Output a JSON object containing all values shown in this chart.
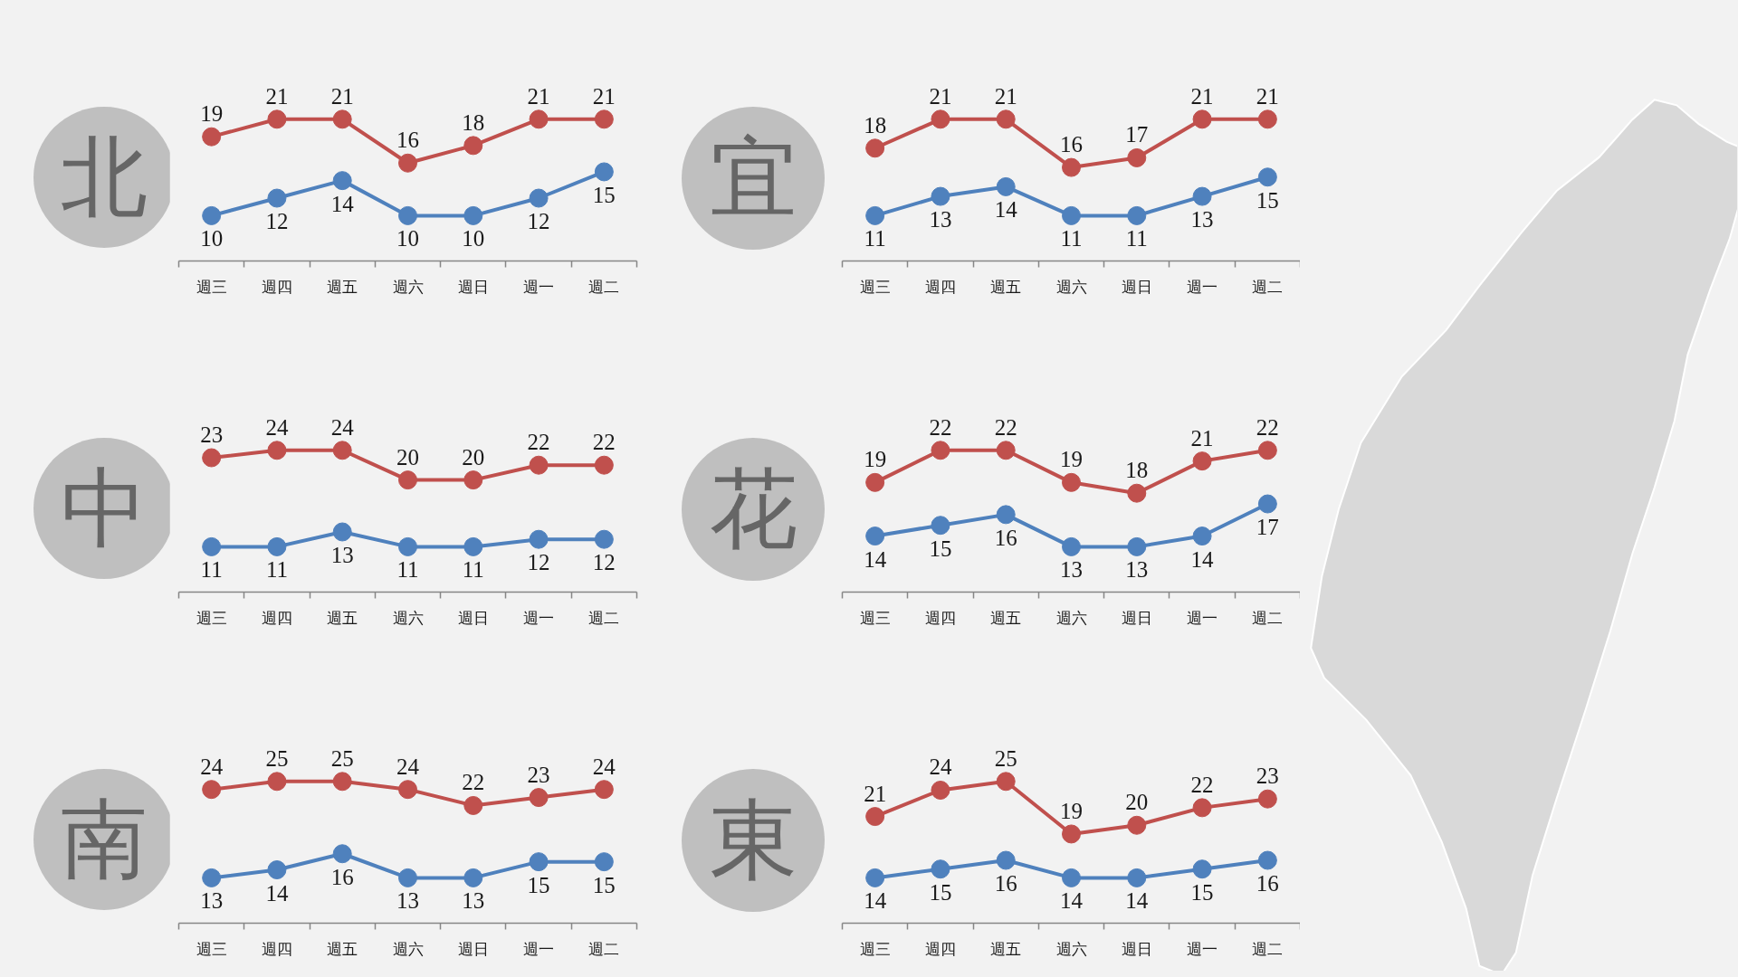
{
  "chart_data": [
    {
      "type": "line",
      "title": "北",
      "categories": [
        "週三",
        "週四",
        "週五",
        "週六",
        "週日",
        "週一",
        "週二"
      ],
      "series": [
        {
          "color": "#c0504d",
          "values": [
            19,
            21,
            21,
            16,
            18,
            21,
            21
          ]
        },
        {
          "color": "#4f81bd",
          "values": [
            10,
            12,
            14,
            10,
            10,
            12,
            15
          ]
        }
      ],
      "data_labels": true,
      "marker": "circle",
      "line_style": "solid",
      "tick_labels": "x"
    },
    {
      "type": "line",
      "title": "宜",
      "categories": [
        "週三",
        "週四",
        "週五",
        "週六",
        "週日",
        "週一",
        "週二"
      ],
      "series": [
        {
          "color": "#c0504d",
          "values": [
            18,
            21,
            21,
            16,
            17,
            21,
            21
          ]
        },
        {
          "color": "#4f81bd",
          "values": [
            11,
            13,
            14,
            11,
            11,
            13,
            15
          ]
        }
      ],
      "data_labels": true,
      "marker": "circle",
      "line_style": "solid",
      "tick_labels": "x"
    },
    {
      "type": "line",
      "title": "中",
      "categories": [
        "週三",
        "週四",
        "週五",
        "週六",
        "週日",
        "週一",
        "週二"
      ],
      "series": [
        {
          "color": "#c0504d",
          "values": [
            23,
            24,
            24,
            20,
            20,
            22,
            22
          ]
        },
        {
          "color": "#4f81bd",
          "values": [
            11,
            11,
            13,
            11,
            11,
            12,
            12
          ]
        }
      ],
      "data_labels": true,
      "marker": "circle",
      "line_style": "solid",
      "tick_labels": "x"
    },
    {
      "type": "line",
      "title": "花",
      "categories": [
        "週三",
        "週四",
        "週五",
        "週六",
        "週日",
        "週一",
        "週二"
      ],
      "series": [
        {
          "color": "#c0504d",
          "values": [
            19,
            22,
            22,
            19,
            18,
            21,
            22
          ]
        },
        {
          "color": "#4f81bd",
          "values": [
            14,
            15,
            16,
            13,
            13,
            14,
            17
          ]
        }
      ],
      "data_labels": true,
      "marker": "circle",
      "line_style": "solid",
      "tick_labels": "x"
    },
    {
      "type": "line",
      "title": "南",
      "categories": [
        "週三",
        "週四",
        "週五",
        "週六",
        "週日",
        "週一",
        "週二"
      ],
      "series": [
        {
          "color": "#c0504d",
          "values": [
            24,
            25,
            25,
            24,
            22,
            23,
            24
          ]
        },
        {
          "color": "#4f81bd",
          "values": [
            13,
            14,
            16,
            13,
            13,
            15,
            15
          ]
        }
      ],
      "data_labels": true,
      "marker": "circle",
      "line_style": "solid",
      "tick_labels": "x"
    },
    {
      "type": "line",
      "title": "東",
      "categories": [
        "週三",
        "週四",
        "週五",
        "週六",
        "週日",
        "週一",
        "週二"
      ],
      "series": [
        {
          "color": "#c0504d",
          "values": [
            21,
            24,
            25,
            19,
            20,
            22,
            23
          ]
        },
        {
          "color": "#4f81bd",
          "values": [
            14,
            15,
            16,
            14,
            14,
            15,
            16
          ]
        }
      ],
      "data_labels": true,
      "marker": "circle",
      "line_style": "solid",
      "tick_labels": "x"
    }
  ]
}
